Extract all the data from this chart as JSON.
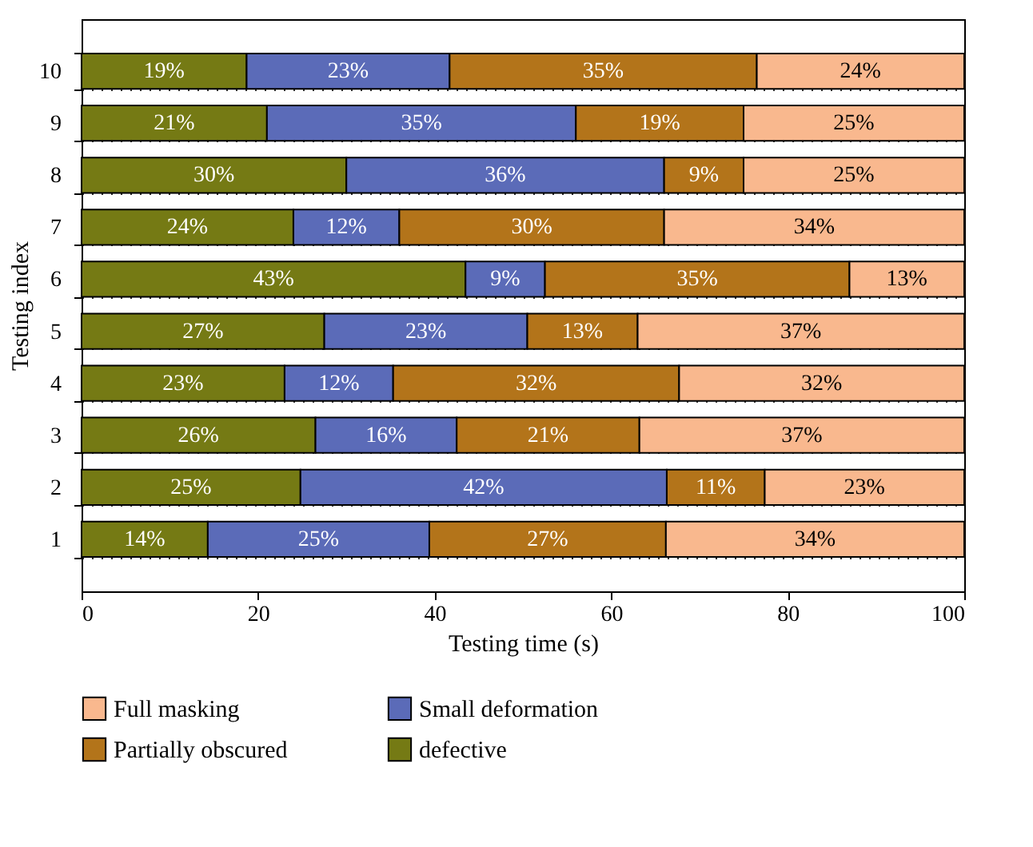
{
  "chart_data": {
    "type": "bar",
    "orientation": "horizontal",
    "stacked": true,
    "xlabel": "Testing time (s)",
    "ylabel": "Testing index",
    "categories": [
      "10",
      "9",
      "8",
      "7",
      "6",
      "5",
      "4",
      "3",
      "2",
      "1"
    ],
    "series": [
      {
        "name": "defective",
        "color": "#757a14",
        "values": [
          18.7,
          21,
          30,
          24,
          43.5,
          27.5,
          23,
          26.5,
          24.8,
          14.3
        ],
        "value_labels": [
          "19%",
          "21%",
          "30%",
          "24%",
          "43%",
          "27%",
          "23%",
          "26%",
          "25%",
          "14%"
        ]
      },
      {
        "name": "Small deformation",
        "color": "#5b6bb8",
        "values": [
          23,
          35,
          36,
          12,
          9,
          23,
          12.3,
          16,
          41.5,
          25.1
        ],
        "value_labels": [
          "23%",
          "35%",
          "36%",
          "12%",
          "9%",
          "23%",
          "12%",
          "16%",
          "42%",
          "25%"
        ]
      },
      {
        "name": "Partially obscured",
        "color": "#b3741a",
        "values": [
          34.8,
          19,
          9,
          30,
          34.5,
          12.5,
          32.4,
          20.7,
          11.1,
          26.8
        ],
        "value_labels": [
          "35%",
          "19%",
          "9%",
          "30%",
          "35%",
          "13%",
          "32%",
          "21%",
          "11%",
          "27%"
        ]
      },
      {
        "name": "Full masking",
        "color": "#f9b88e",
        "values": [
          23.5,
          25,
          25,
          34,
          13,
          37,
          32.3,
          36.8,
          22.6,
          33.8
        ],
        "value_labels": [
          "24%",
          "25%",
          "25%",
          "34%",
          "13%",
          "37%",
          "32%",
          "37%",
          "23%",
          "34%"
        ]
      }
    ],
    "xlim": [
      0,
      100
    ],
    "xticks": [
      0,
      20,
      40,
      60,
      80,
      100
    ],
    "grid": "y",
    "legend": "bottom"
  }
}
